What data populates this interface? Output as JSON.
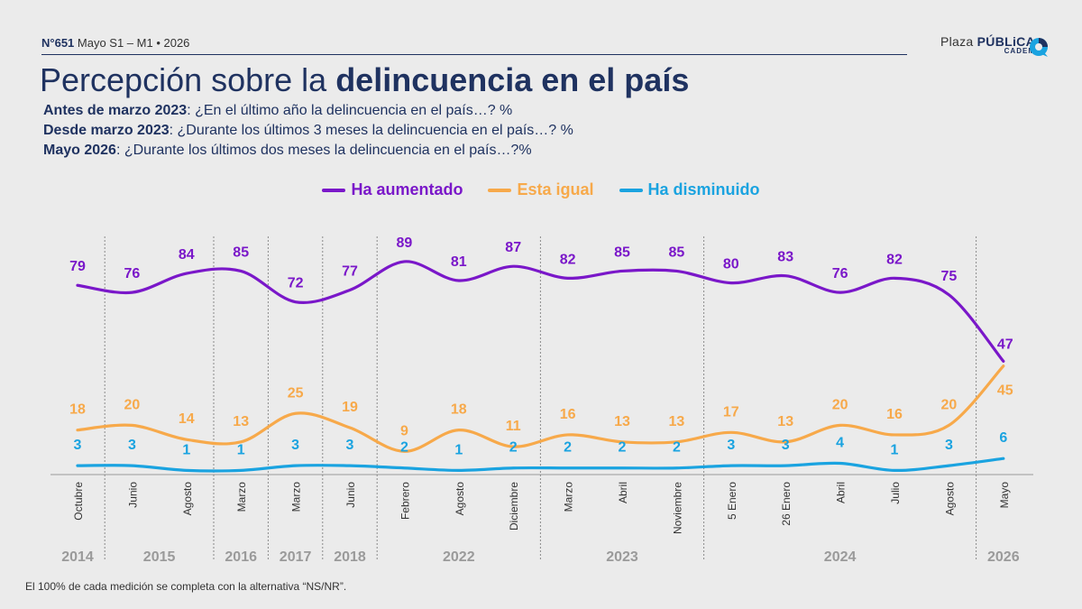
{
  "header": {
    "issue_number": "N°651",
    "issue_rest": " Mayo S1 – M1 • 2026",
    "brand_light": "Plaza ",
    "brand_bold": "PÚBLiCA",
    "brand_sub": "CADEM"
  },
  "title": {
    "light": "Percepción sobre la ",
    "bold": "delincuencia en el país"
  },
  "subtitles": [
    {
      "bold": "Antes de marzo 2023",
      "text": ": ¿En el último año la delincuencia en el país…? %"
    },
    {
      "bold": "Desde marzo 2023",
      "text": ": ¿Durante los últimos 3 meses la delincuencia en el país…? %"
    },
    {
      "bold": "Mayo 2026",
      "text": ": ¿Durante los últimos dos meses la delincuencia en el país…?%"
    }
  ],
  "footnote": "El 100% de cada medición se completa con la alternativa “NS/NR”.",
  "colors": {
    "navy": "#1f3260",
    "purple": "#7a17c9",
    "orange": "#f7a94a",
    "blue": "#1aa3e0",
    "gray": "#9a9a9a"
  },
  "chart_data": {
    "type": "line",
    "x": [
      "Octubre",
      "Junio",
      "Agosto",
      "Marzo",
      "Marzo",
      "Junio",
      "Febrero",
      "Agosto",
      "Diciembre",
      "Marzo",
      "Abril",
      "Noviembre",
      "5 Enero",
      "26 Enero",
      "Abril",
      "Julio",
      "Agosto",
      "Mayo"
    ],
    "year_labels": [
      {
        "label": "2014",
        "index": 0
      },
      {
        "label": "2015",
        "index": 1.5
      },
      {
        "label": "2016",
        "index": 3
      },
      {
        "label": "2017",
        "index": 4
      },
      {
        "label": "2018",
        "index": 5
      },
      {
        "label": "2022",
        "index": 7
      },
      {
        "label": "2023",
        "index": 10
      },
      {
        "label": "2024",
        "index": 14
      },
      {
        "label": "2026",
        "index": 17
      }
    ],
    "separators_after_index": [
      0,
      2,
      3,
      4,
      5,
      8,
      11,
      16
    ],
    "series": [
      {
        "name": "Ha aumentado",
        "color": "#7a17c9",
        "values": [
          79,
          76,
          84,
          85,
          72,
          77,
          89,
          81,
          87,
          82,
          85,
          85,
          80,
          83,
          76,
          82,
          75,
          47
        ]
      },
      {
        "name": "Esta igual",
        "color": "#f7a94a",
        "values": [
          18,
          20,
          14,
          13,
          25,
          19,
          9,
          18,
          11,
          16,
          13,
          13,
          17,
          13,
          20,
          16,
          20,
          45
        ]
      },
      {
        "name": "Ha disminuido",
        "color": "#1aa3e0",
        "values": [
          3,
          3,
          1,
          1,
          3,
          3,
          2,
          1,
          2,
          2,
          2,
          2,
          3,
          3,
          4,
          1,
          3,
          6
        ]
      }
    ],
    "ylim": [
      0,
      100
    ],
    "grid": false,
    "legend_position": "top-center"
  }
}
